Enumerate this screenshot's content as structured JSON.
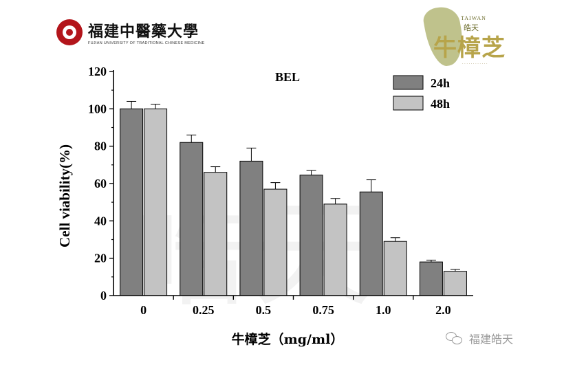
{
  "logos": {
    "university_name": "福建中醫藥大學",
    "university_english": "FUJIAN UNIVERSITY OF TRADITIONAL CHINESE MEDICINE",
    "brand_taiwan": "TAIWAN",
    "brand_haotian": "皓天",
    "brand_main": "牛樟芝",
    "watermark": "皓天",
    "wechat_account": "福建皓天"
  },
  "colors": {
    "series_24h": "#808080",
    "series_48h": "#c3c3c3",
    "axis": "#000000"
  },
  "chart_data": {
    "type": "bar",
    "title": "BEL",
    "xlabel": "牛樟芝（mg/ml）",
    "ylabel": "Cell viability(%)",
    "categories": [
      "0",
      "0.25",
      "0.5",
      "0.75",
      "1.0",
      "2.0"
    ],
    "ylim": [
      0,
      120
    ],
    "yticks": [
      0,
      20,
      40,
      60,
      80,
      100,
      120
    ],
    "grid": false,
    "legend_position": "top-right",
    "error_bars": true,
    "series": [
      {
        "name": "24h",
        "values": [
          100,
          82,
          72,
          64.5,
          55.5,
          18
        ],
        "errors": [
          4,
          4,
          7,
          2.5,
          6.5,
          1
        ]
      },
      {
        "name": "48h",
        "values": [
          100,
          66,
          57,
          49,
          29,
          13
        ],
        "errors": [
          2.5,
          3,
          3.5,
          3,
          2,
          1
        ]
      }
    ]
  }
}
